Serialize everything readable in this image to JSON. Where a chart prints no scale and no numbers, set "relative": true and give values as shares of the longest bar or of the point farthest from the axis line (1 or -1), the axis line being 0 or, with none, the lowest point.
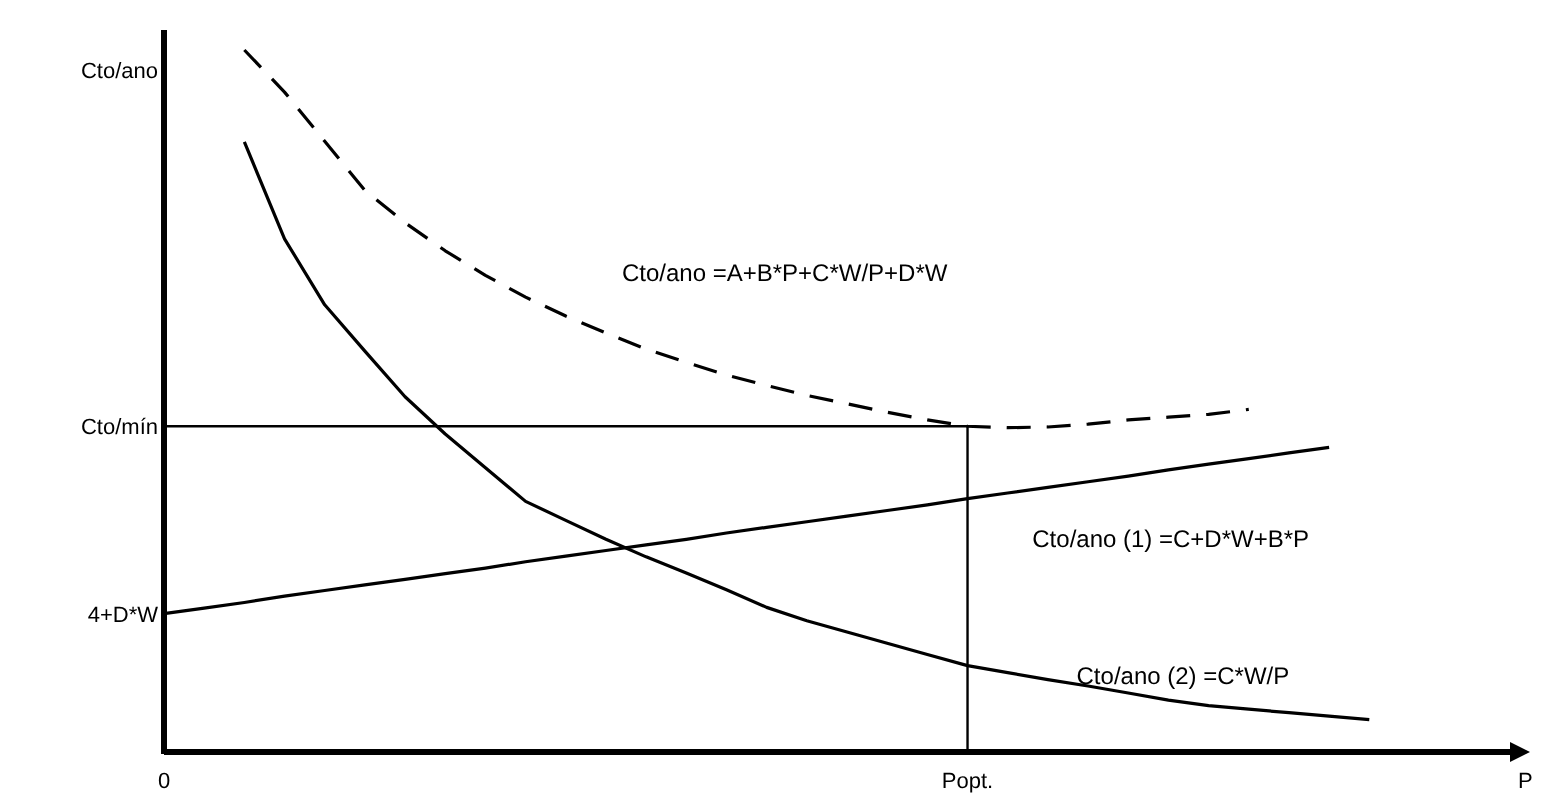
{
  "chart_data": {
    "type": "line",
    "relative": true,
    "ylabel": "Cto/ano",
    "xlabel": "P",
    "categories": [
      "0",
      null,
      null,
      null,
      null,
      null,
      null,
      null,
      null,
      null,
      null,
      null,
      null,
      null,
      null,
      null,
      null,
      null,
      null,
      null,
      "Popt.",
      null,
      null,
      null,
      null,
      null,
      null,
      null,
      null,
      null,
      null,
      null,
      null,
      null
    ],
    "series": [
      {
        "name": "Cto/ano =A+B*P+C*W/P+D*W",
        "color": "#000000",
        "line_style": "dashed",
        "values": [
          null,
          null,
          1.0,
          0.94,
          0.87,
          0.8,
          0.754,
          0.714,
          0.679,
          0.648,
          0.621,
          0.597,
          0.574,
          0.555,
          0.537,
          0.522,
          0.508,
          0.496,
          0.484,
          0.473,
          0.464,
          0.462,
          0.463,
          0.467,
          0.473,
          0.477,
          0.481,
          0.488,
          null,
          null,
          null,
          null,
          null,
          null
        ]
      },
      {
        "name": "Cto/ano (1) =C+D*W+B*P",
        "color": "#000000",
        "line_style": "solid",
        "values": [
          0.197,
          0.205,
          0.213,
          0.222,
          0.23,
          0.238,
          0.246,
          0.254,
          0.262,
          0.271,
          0.279,
          0.287,
          0.295,
          0.303,
          0.312,
          0.32,
          0.328,
          0.336,
          0.344,
          0.352,
          0.361,
          0.369,
          0.377,
          0.385,
          0.393,
          0.402,
          0.41,
          0.418,
          0.426,
          0.434,
          null,
          null,
          null,
          null
        ]
      },
      {
        "name": "Cto/ano (2) =C*W/P",
        "color": "#000000",
        "line_style": "solid",
        "values": [
          null,
          null,
          0.869,
          0.731,
          0.637,
          0.571,
          0.506,
          0.453,
          0.405,
          0.357,
          0.33,
          0.303,
          0.278,
          0.255,
          0.231,
          0.206,
          0.187,
          0.171,
          0.155,
          0.139,
          0.123,
          0.113,
          0.103,
          0.094,
          0.084,
          0.074,
          0.066,
          0.061,
          0.056,
          0.051,
          0.046,
          null,
          null,
          null
        ]
      }
    ],
    "ref_lines": [
      {
        "axis": "y",
        "value": 0.464,
        "label": "Cto/mín",
        "color": "#000000"
      },
      {
        "axis": "x",
        "value": "Popt.",
        "color": "#000000"
      }
    ],
    "annotations": [
      {
        "text": "4+D*W",
        "x": "0",
        "y": 0.197
      }
    ]
  }
}
